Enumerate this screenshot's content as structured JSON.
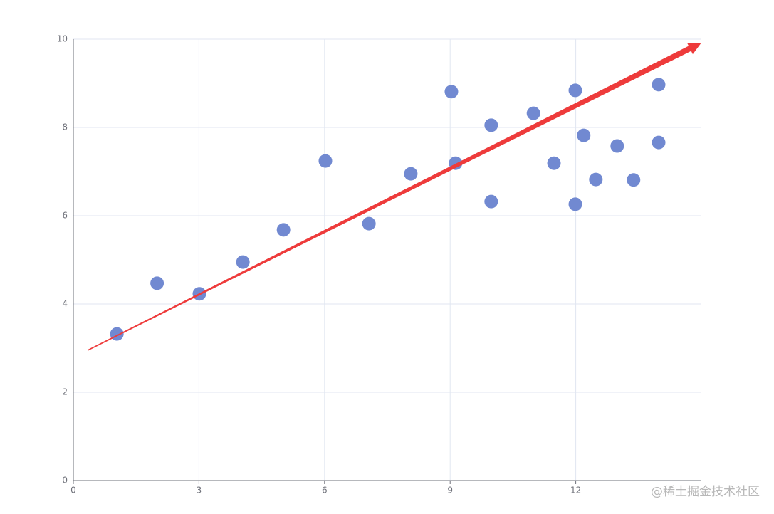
{
  "chart_data": {
    "type": "scatter",
    "series": [
      {
        "color": "#7189d1",
        "x": [
          1.04,
          2.0,
          3.01,
          4.05,
          5.02,
          6.02,
          7.06,
          8.06,
          9.03,
          9.13,
          9.98,
          9.98,
          10.99,
          11.48,
          11.99,
          11.99,
          12.19,
          12.48,
          12.99,
          13.38,
          13.98,
          13.98
        ],
        "values": [
          3.32,
          4.47,
          4.23,
          4.95,
          5.68,
          7.24,
          5.82,
          6.95,
          8.81,
          7.19,
          8.05,
          6.32,
          8.32,
          7.19,
          8.84,
          6.26,
          7.82,
          6.82,
          7.58,
          6.81,
          8.97,
          7.66
        ]
      }
    ],
    "regression": {
      "color": "#ee3b3b",
      "x": [
        0.34,
        15
      ],
      "values": [
        2.95,
        9.92
      ]
    },
    "xlim": [
      0,
      15
    ],
    "xticks": [
      0,
      3,
      6,
      9,
      12
    ],
    "ylim": [
      0,
      10
    ],
    "yticks": [
      0,
      2,
      4,
      6,
      8,
      10
    ],
    "grid": true,
    "watermark": "@稀土掘金技术社区"
  }
}
